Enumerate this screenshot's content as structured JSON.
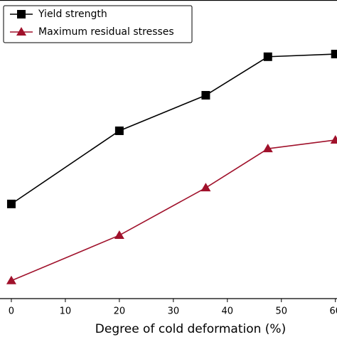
{
  "chart_data": {
    "type": "line",
    "x_label": "Degree of cold deformation (%)",
    "x": [
      0,
      20,
      36,
      47.5,
      60
    ],
    "series": [
      {
        "name": "Yield strength",
        "color": "#000000",
        "marker": "square",
        "values": [
          31.7,
          56.2,
          68.1,
          81.0,
          81.9
        ]
      },
      {
        "name": "Maximum residual stresses",
        "color": "#a0112b",
        "marker": "triangle",
        "values": [
          6.0,
          21.2,
          37.1,
          50.2,
          53.1
        ]
      }
    ],
    "xlim": [
      -2.1,
      60.3
    ],
    "xticks": [
      0,
      10,
      20,
      30,
      40,
      50,
      60
    ],
    "ylim": [
      0,
      100
    ],
    "legend": "upper left"
  }
}
